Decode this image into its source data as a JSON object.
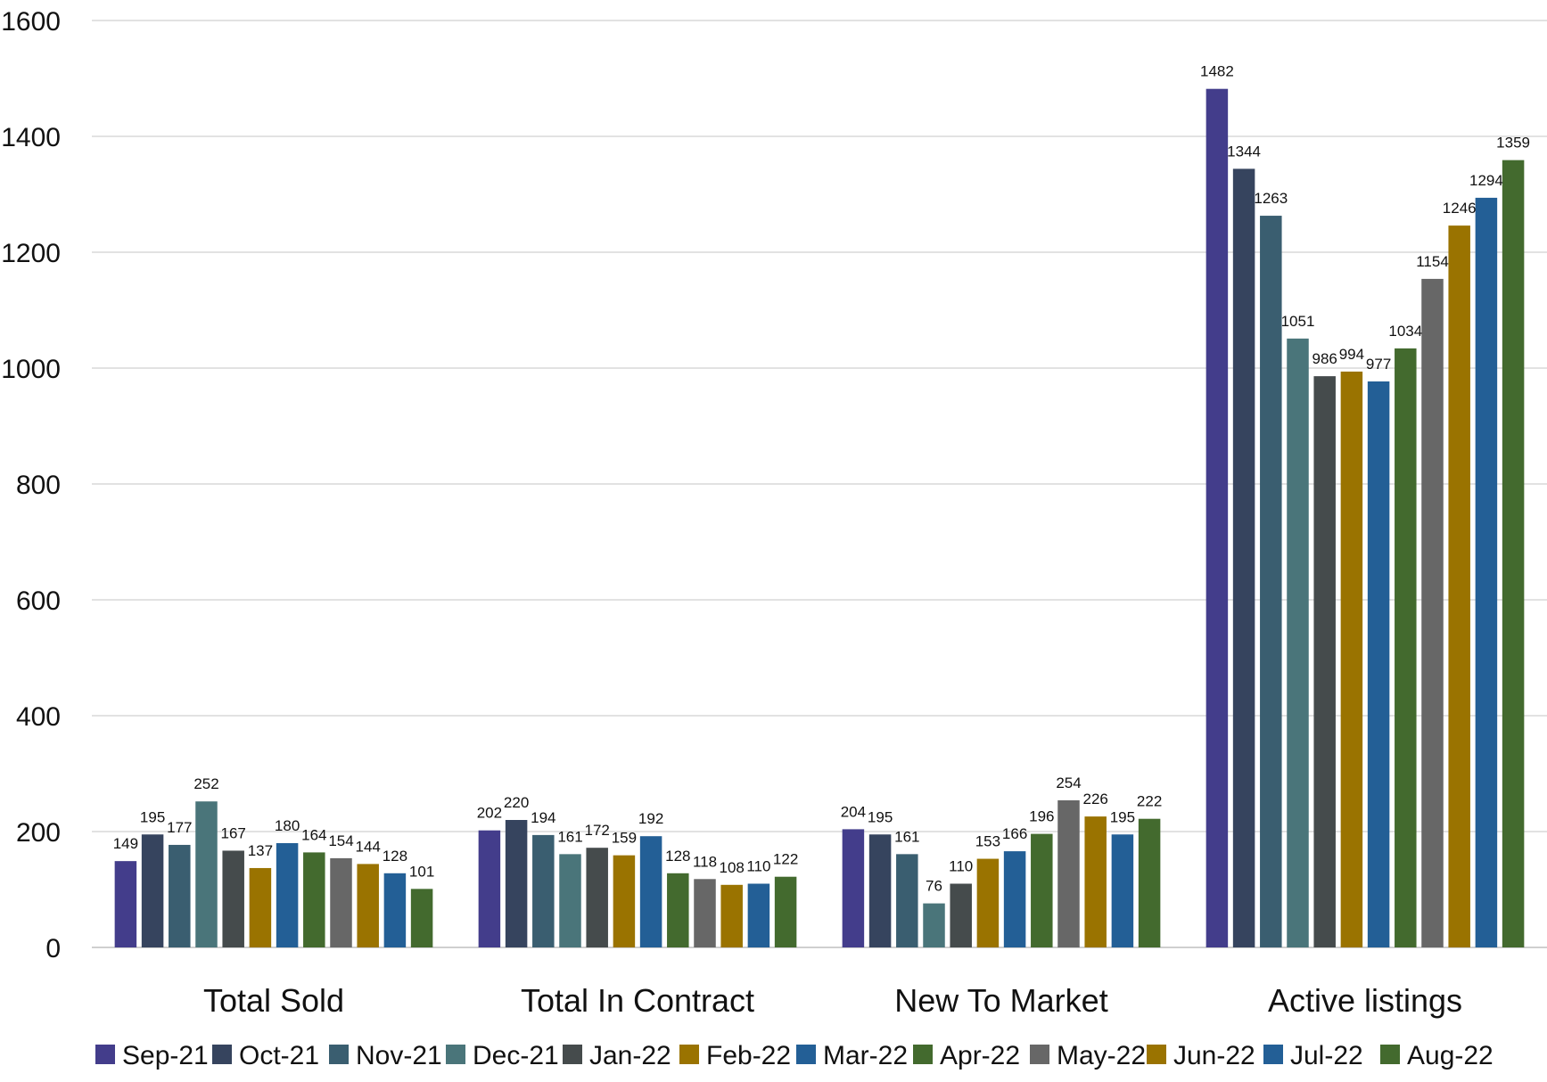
{
  "chart_data": {
    "type": "bar",
    "categories": [
      "Total Sold",
      "Total In Contract",
      "New To Market",
      "Active listings"
    ],
    "ylim": [
      0,
      1600
    ],
    "yticks": [
      0,
      200,
      400,
      600,
      800,
      1000,
      1200,
      1400,
      1600
    ],
    "grid": true,
    "legend_position": "bottom",
    "series": [
      {
        "name": "Sep-21",
        "color": "#433d8b",
        "values": [
          149,
          202,
          204,
          1482
        ]
      },
      {
        "name": "Oct-21",
        "color": "#36445e",
        "values": [
          195,
          220,
          195,
          1344
        ]
      },
      {
        "name": "Nov-21",
        "color": "#3a5e70",
        "values": [
          177,
          194,
          161,
          1263
        ]
      },
      {
        "name": "Dec-21",
        "color": "#4a757a",
        "values": [
          252,
          161,
          76,
          1051
        ]
      },
      {
        "name": "Jan-22",
        "color": "#454b4c",
        "values": [
          167,
          172,
          110,
          986
        ]
      },
      {
        "name": "Feb-22",
        "color": "#9a7300",
        "values": [
          137,
          159,
          153,
          994
        ]
      },
      {
        "name": "Mar-22",
        "color": "#235f96",
        "values": [
          180,
          192,
          166,
          977
        ]
      },
      {
        "name": "Apr-22",
        "color": "#436a2e",
        "values": [
          164,
          128,
          196,
          1034
        ]
      },
      {
        "name": "May-22",
        "color": "#676767",
        "values": [
          154,
          118,
          254,
          1154
        ]
      },
      {
        "name": "Jun-22",
        "color": "#9a7300",
        "values": [
          144,
          108,
          226,
          1246
        ]
      },
      {
        "name": "Jul-22",
        "color": "#235f96",
        "values": [
          128,
          110,
          195,
          1294
        ]
      },
      {
        "name": "Aug-22",
        "color": "#436a2e",
        "values": [
          101,
          122,
          222,
          1359
        ]
      }
    ]
  }
}
